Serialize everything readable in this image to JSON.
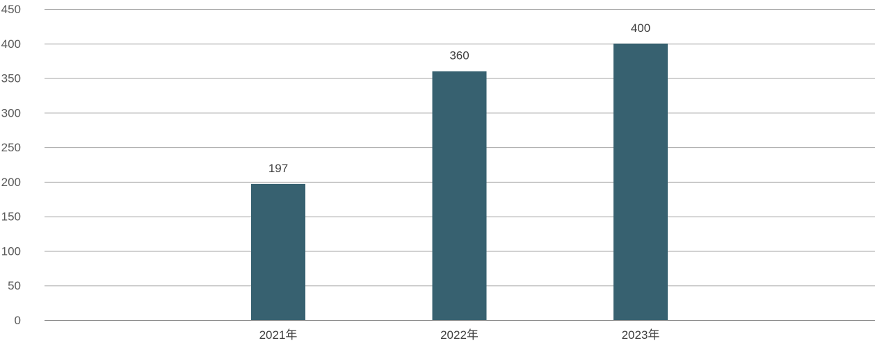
{
  "chart_data": {
    "type": "bar",
    "title": "",
    "xlabel": "",
    "ylabel": "",
    "categories": [
      "2021年",
      "2022年",
      "2023年"
    ],
    "values": [
      197,
      360,
      400
    ],
    "data_labels": [
      "197",
      "360",
      "400"
    ],
    "yticks": [
      "0",
      "50",
      "100",
      "150",
      "200",
      "250",
      "300",
      "350",
      "400",
      "450"
    ],
    "ylim": [
      0,
      450
    ],
    "grid": true,
    "legend": "none",
    "colors": {
      "bar": "#376170",
      "grid": "#a6a6a6",
      "text": "#404040"
    }
  }
}
